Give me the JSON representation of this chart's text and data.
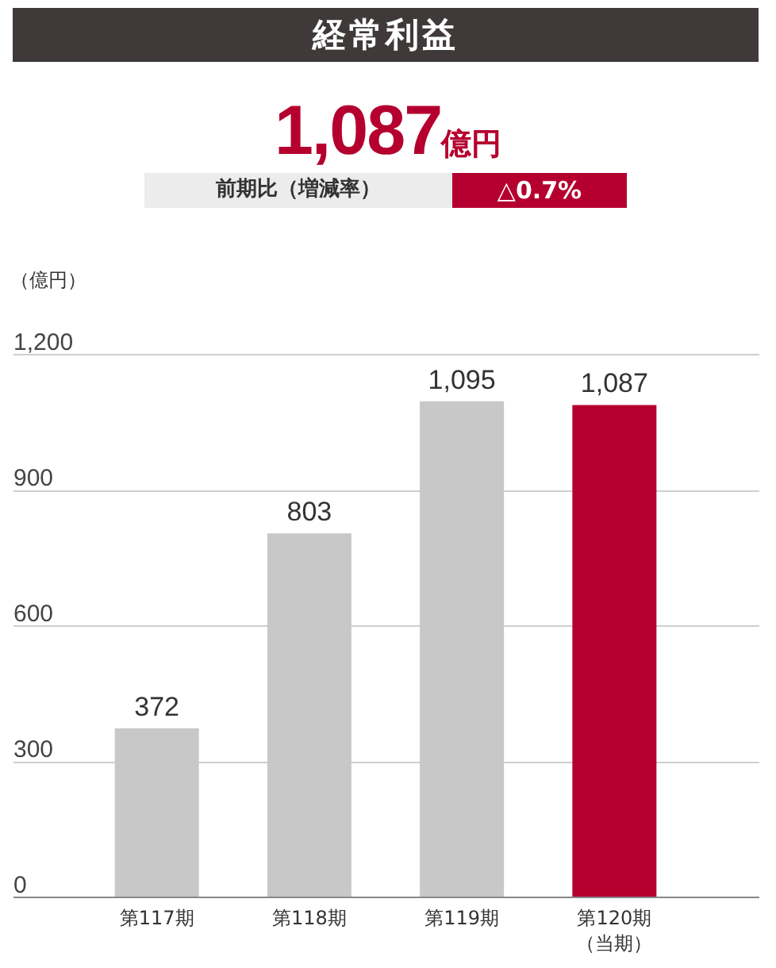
{
  "chart_data": {
    "type": "bar",
    "title": "経常利益",
    "annotations": [
      "1,087億円",
      "前期比（増減率）",
      "△0.7%"
    ],
    "ylabel": "（億円）",
    "categories": [
      "第117期",
      "第118期",
      "第119期",
      "第120期（当期）"
    ],
    "values": [
      372,
      803,
      1095,
      1087
    ],
    "colors": [
      "#c8c8c8",
      "#c8c8c8",
      "#c8c8c8",
      "#b5002f"
    ],
    "ylim": [
      0,
      1200
    ],
    "yticks": [
      {
        "value": 0,
        "label": "0"
      },
      {
        "value": 300,
        "label": "300"
      },
      {
        "value": 600,
        "label": "600"
      },
      {
        "value": 900,
        "label": "900"
      },
      {
        "value": 1200,
        "label": "1,200"
      }
    ],
    "grid": "y",
    "value_labels": [
      "372",
      "803",
      "1,095",
      "1,087"
    ]
  }
}
